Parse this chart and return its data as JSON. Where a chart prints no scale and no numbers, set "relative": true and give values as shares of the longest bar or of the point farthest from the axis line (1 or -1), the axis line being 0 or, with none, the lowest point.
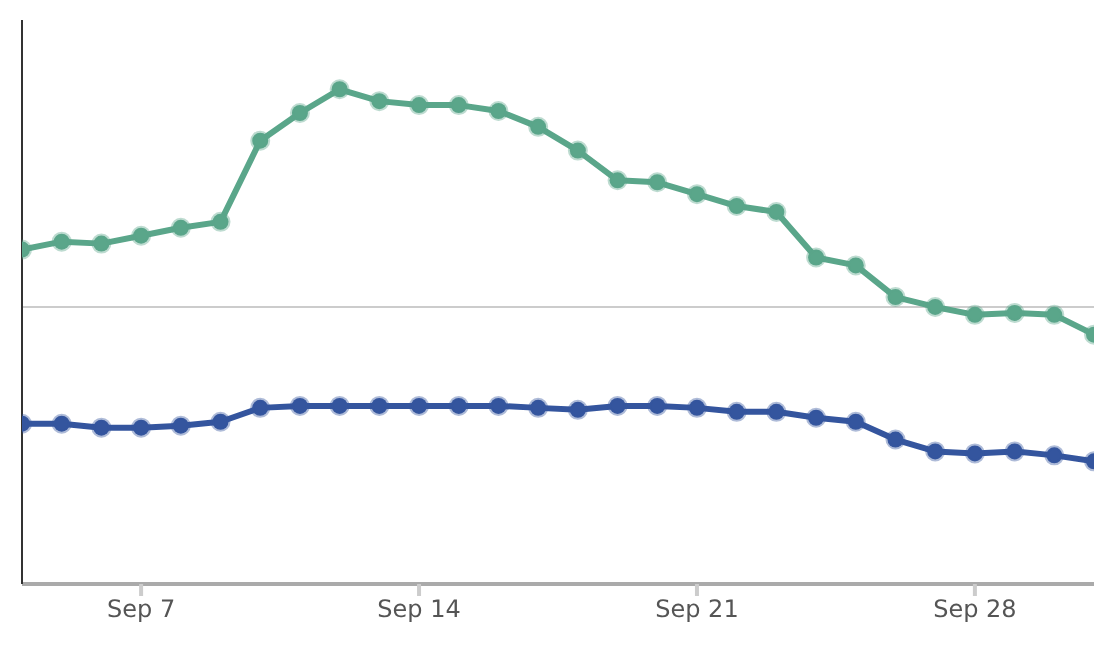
{
  "chart_data": {
    "type": "line",
    "relative": true,
    "marker": "circle",
    "x": [
      "--09-04",
      "--09-05",
      "--09-06",
      "--09-07",
      "--09-08",
      "--09-09",
      "--09-10",
      "--09-11",
      "--09-12",
      "--09-13",
      "--09-14",
      "--09-15",
      "--09-16",
      "--09-17",
      "--09-18",
      "--09-19",
      "--09-20",
      "--09-21",
      "--09-22",
      "--09-23",
      "--09-24",
      "--09-25",
      "--09-26",
      "--09-27",
      "--09-28",
      "--09-29",
      "--09-30",
      "--10-01"
    ],
    "xlim": [
      "--09-04",
      "--10-01"
    ],
    "xticks": [
      {
        "value": "--09-07",
        "label": "Sep 7"
      },
      {
        "value": "--09-14",
        "label": "Sep 14"
      },
      {
        "value": "--09-21",
        "label": "Sep 21"
      },
      {
        "value": "--09-28",
        "label": "Sep 28"
      }
    ],
    "series": [
      {
        "color": "#5aa68a",
        "values": [
          0.676,
          0.692,
          0.688,
          0.704,
          0.72,
          0.732,
          0.896,
          0.952,
          1,
          0.976,
          0.968,
          0.968,
          0.956,
          0.924,
          0.876,
          0.816,
          0.812,
          0.788,
          0.764,
          0.752,
          0.66,
          0.644,
          0.58,
          0.56,
          0.544,
          0.548,
          0.544,
          0.504
        ]
      },
      {
        "color": "#34559e",
        "values": [
          0.324,
          0.324,
          0.316,
          0.316,
          0.32,
          0.328,
          0.356,
          0.36,
          0.36,
          0.36,
          0.36,
          0.36,
          0.36,
          0.356,
          0.352,
          0.36,
          0.36,
          0.356,
          0.348,
          0.348,
          0.336,
          0.328,
          0.292,
          0.268,
          0.264,
          0.268,
          0.26,
          0.248
        ]
      }
    ],
    "ref_lines": [
      {
        "axis": "y",
        "value": 0.56,
        "color": "#cccccc"
      }
    ]
  }
}
